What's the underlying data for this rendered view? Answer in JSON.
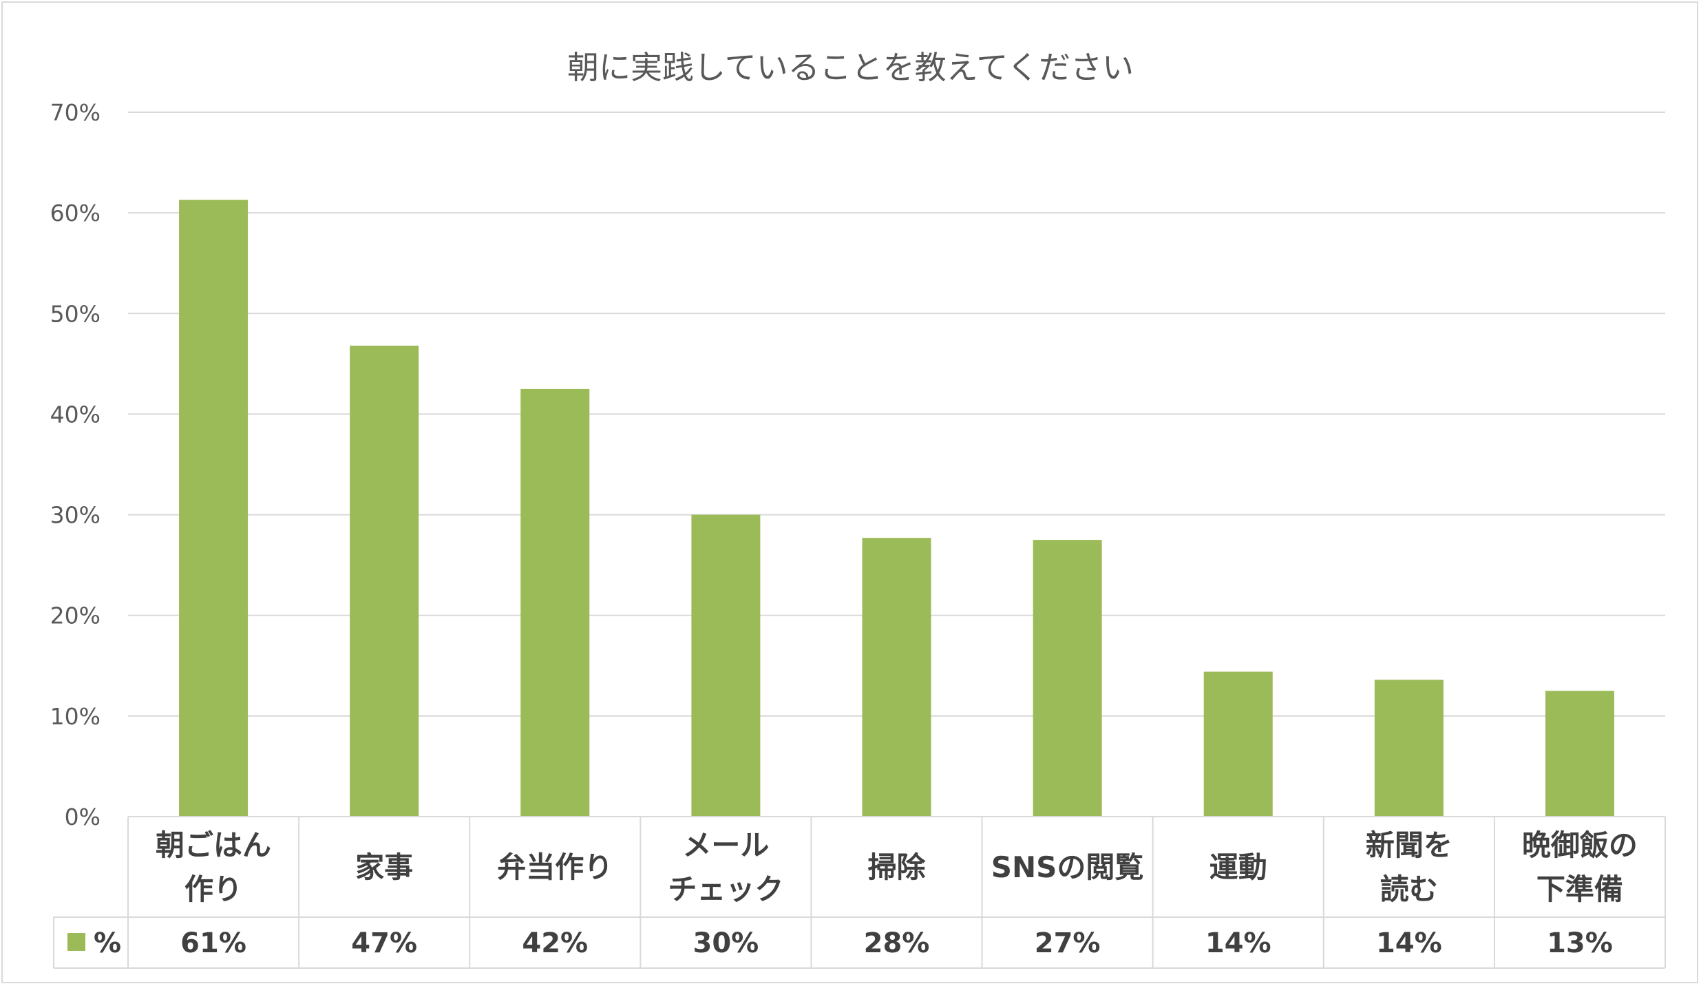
{
  "chart_data": {
    "type": "bar",
    "title": "朝に実践していることを教えてください",
    "categories": [
      [
        "朝ごはん",
        "作り"
      ],
      [
        "家事"
      ],
      [
        "弁当作り"
      ],
      [
        "メール",
        "チェック"
      ],
      [
        "掃除"
      ],
      [
        "SNSの閲覧"
      ],
      [
        "運動"
      ],
      [
        "新聞を",
        "読む"
      ],
      [
        "晩御飯の",
        "下準備"
      ]
    ],
    "series": [
      {
        "name": "%",
        "values": [
          61.3,
          46.8,
          42.5,
          30.0,
          27.7,
          27.5,
          14.4,
          13.6,
          12.5
        ],
        "labels": [
          "61%",
          "47%",
          "42%",
          "30%",
          "28%",
          "27%",
          "14%",
          "14%",
          "13%"
        ],
        "color": "#9bbb59"
      }
    ],
    "ylim": [
      0,
      70
    ],
    "ytick_values": [
      0,
      10,
      20,
      30,
      40,
      50,
      60,
      70
    ],
    "ytick_labels": [
      "0%",
      "10%",
      "20%",
      "30%",
      "40%",
      "50%",
      "60%",
      "70%"
    ],
    "grid": true,
    "legend": "data-table",
    "gridline_color": "#d9d9d9",
    "text_color": "#595959"
  }
}
